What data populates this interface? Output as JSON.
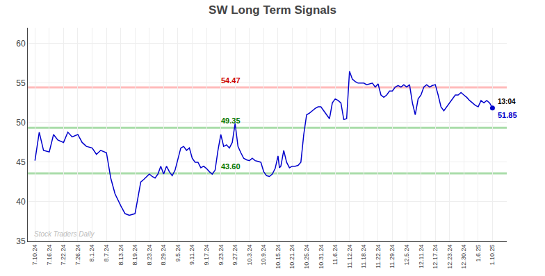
{
  "chart_data": {
    "type": "line",
    "title": "SW Long Term Signals",
    "color": "#0000cc",
    "grid": true,
    "x": [
      0.0,
      0.3,
      0.6,
      1.0,
      1.3,
      1.6,
      2.0,
      2.3,
      2.6,
      3.0,
      3.3,
      3.6,
      4.0,
      4.3,
      4.6,
      5.0,
      5.3,
      5.6,
      6.0,
      6.3,
      6.6,
      7.0,
      7.2,
      7.4,
      7.6,
      8.0,
      8.2,
      8.4,
      8.6,
      8.8,
      9.0,
      9.2,
      9.4,
      9.6,
      9.8,
      10.0,
      10.2,
      10.4,
      10.6,
      10.8,
      11.0,
      11.2,
      11.4,
      11.6,
      11.8,
      12.0,
      12.2,
      12.4,
      12.6,
      12.8,
      13.0,
      13.2,
      13.4,
      13.6,
      13.8,
      14.0,
      14.2,
      14.4,
      14.6,
      14.8,
      15.0,
      15.2,
      15.4,
      15.6,
      15.8,
      16.0,
      16.2,
      16.4,
      16.6,
      16.8,
      17.0,
      17.1,
      17.2,
      17.4,
      17.6,
      17.8,
      18.0,
      18.2,
      18.4,
      18.6,
      18.8,
      19.0,
      19.2,
      19.4,
      19.6,
      19.8,
      20.0,
      20.2,
      20.4,
      20.6,
      20.8,
      21.0,
      21.2,
      21.4,
      21.6,
      21.8,
      22.0,
      22.2,
      22.4,
      22.6,
      22.8,
      23.0,
      23.2,
      23.4,
      23.6,
      23.8,
      24.0,
      24.2,
      24.4,
      24.6,
      24.8,
      25.0,
      25.2,
      25.4,
      25.6,
      25.8,
      26.0,
      26.2,
      26.4,
      26.6,
      26.8,
      27.0,
      27.2,
      27.4,
      27.6,
      27.8,
      28.0,
      28.2,
      28.4,
      28.6,
      28.8,
      29.0,
      29.2,
      29.4,
      29.6,
      29.8,
      30.0,
      30.2,
      30.4,
      30.6,
      30.8,
      31.0,
      31.2,
      31.4,
      31.6,
      31.8,
      32.0
    ],
    "values": [
      45.2,
      48.8,
      46.5,
      46.3,
      48.5,
      47.8,
      47.5,
      48.8,
      48.2,
      48.5,
      47.5,
      47.0,
      46.8,
      46.0,
      46.5,
      46.2,
      43.0,
      41.0,
      39.5,
      38.5,
      38.3,
      38.5,
      40.5,
      42.5,
      42.8,
      43.5,
      43.2,
      43.0,
      43.5,
      44.5,
      43.5,
      44.5,
      43.8,
      43.3,
      44.0,
      45.5,
      46.8,
      47.0,
      46.5,
      46.8,
      45.5,
      45.0,
      45.0,
      44.3,
      44.5,
      44.2,
      43.8,
      43.5,
      44.0,
      46.5,
      48.5,
      47.0,
      47.2,
      46.8,
      47.5,
      49.9,
      47.0,
      46.2,
      45.5,
      45.3,
      45.2,
      45.5,
      45.2,
      45.1,
      45.0,
      43.8,
      43.3,
      43.2,
      43.5,
      44.2,
      45.8,
      44.3,
      44.5,
      46.5,
      45.0,
      44.3,
      44.5,
      44.5,
      44.6,
      45.0,
      48.5,
      51.0,
      51.2,
      51.5,
      51.8,
      52.0,
      52.0,
      51.5,
      51.0,
      50.5,
      52.5,
      53.0,
      52.8,
      52.5,
      50.4,
      50.5,
      56.5,
      55.5,
      55.2,
      55.0,
      55.0,
      55.0,
      54.8,
      54.9,
      55.0,
      54.5,
      54.9,
      53.5,
      53.2,
      53.5,
      54.0,
      54.0,
      54.5,
      54.7,
      54.5,
      54.8,
      54.5,
      54.8,
      52.5,
      51.0,
      53.0,
      53.5,
      54.5,
      54.8,
      54.5,
      54.7,
      54.8,
      53.5,
      52.0,
      51.5,
      52.0,
      52.5,
      53.0,
      53.5,
      53.5,
      53.8,
      53.5,
      53.2,
      52.8,
      52.5,
      52.2,
      52.0,
      52.8,
      52.5,
      52.8,
      52.5,
      51.85
    ],
    "xlim": [
      -0.5,
      33.0
    ],
    "xticks": [
      {
        "value": 0,
        "label": "7.10.24"
      },
      {
        "value": 1,
        "label": "7.16.24"
      },
      {
        "value": 2,
        "label": "7.22.24"
      },
      {
        "value": 3,
        "label": "7.26.24"
      },
      {
        "value": 4,
        "label": "8.1.24"
      },
      {
        "value": 5,
        "label": "8.7.24"
      },
      {
        "value": 6,
        "label": "8.13.24"
      },
      {
        "value": 7,
        "label": "8.19.24"
      },
      {
        "value": 8,
        "label": "8.23.24"
      },
      {
        "value": 9,
        "label": "8.29.24"
      },
      {
        "value": 10,
        "label": "9.5.24"
      },
      {
        "value": 11,
        "label": "9.11.24"
      },
      {
        "value": 12,
        "label": "9.17.24"
      },
      {
        "value": 13,
        "label": "9.23.24"
      },
      {
        "value": 14,
        "label": "9.27.24"
      },
      {
        "value": 15,
        "label": "10.3.24"
      },
      {
        "value": 16,
        "label": "10.9.24"
      },
      {
        "value": 17,
        "label": "10.15.24"
      },
      {
        "value": 18,
        "label": "10.21.24"
      },
      {
        "value": 19,
        "label": "10.25.24"
      },
      {
        "value": 20,
        "label": "10.31.24"
      },
      {
        "value": 21,
        "label": "11.6.24"
      },
      {
        "value": 22,
        "label": "11.12.24"
      },
      {
        "value": 23,
        "label": "11.18.24"
      },
      {
        "value": 24,
        "label": "11.22.24"
      },
      {
        "value": 25,
        "label": "11.29.24"
      },
      {
        "value": 26,
        "label": "12.5.24"
      },
      {
        "value": 27,
        "label": "12.11.24"
      },
      {
        "value": 28,
        "label": "12.17.24"
      },
      {
        "value": 29,
        "label": "12.23.24"
      },
      {
        "value": 30,
        "label": "12.30.24"
      },
      {
        "value": 31,
        "label": "1.6.25"
      },
      {
        "value": 32,
        "label": "1.10.25"
      }
    ],
    "ylim": [
      35,
      62
    ],
    "yticks": [
      35,
      40,
      45,
      50,
      55,
      60
    ],
    "reference_lines": [
      {
        "value": 54.47,
        "color": "#ffbbbb",
        "label": "54.47",
        "label_color": "#cc0000"
      },
      {
        "value": 49.35,
        "color": "#aaddaa",
        "label": "49.35",
        "label_color": "#007700"
      },
      {
        "value": 43.6,
        "color": "#aaddaa",
        "label": "43.60",
        "label_color": "#007700"
      }
    ],
    "end_labels": [
      {
        "text": "13:04",
        "color": "#000000"
      },
      {
        "text": "51.85",
        "color": "#0000cc"
      }
    ],
    "watermark": {
      "text": "Stock Traders Daily",
      "color": "#bbbbbb"
    }
  }
}
